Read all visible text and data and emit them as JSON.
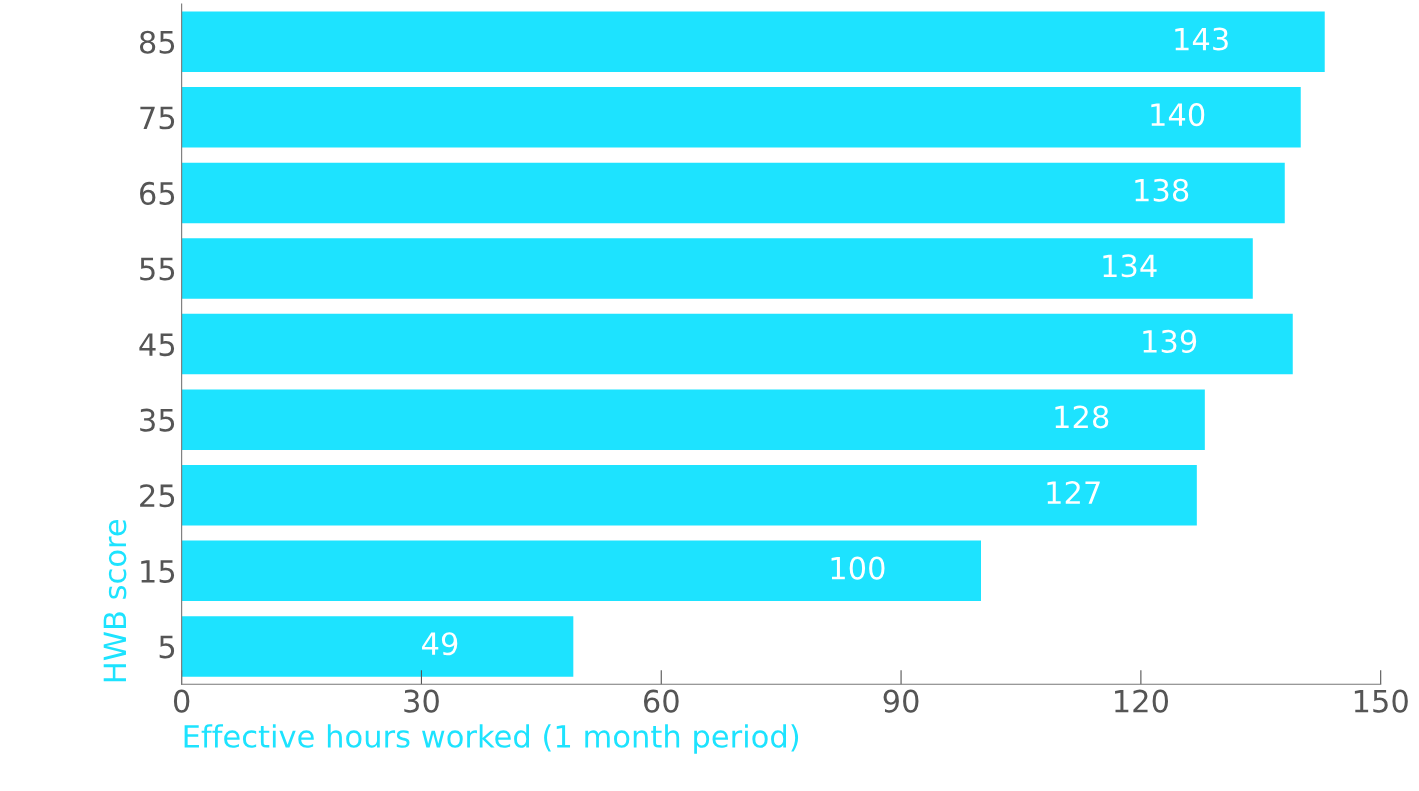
{
  "chart_data": {
    "type": "bar",
    "orientation": "horizontal",
    "xlabel": "Effective hours worked (1 month period)",
    "ylabel": "HWB score",
    "categories": [
      "85",
      "75",
      "65",
      "55",
      "45",
      "35",
      "25",
      "15",
      "5"
    ],
    "values": [
      143,
      140,
      138,
      134,
      139,
      128,
      127,
      100,
      49
    ],
    "color": "#1de3ff",
    "data_labels": true,
    "grid": false,
    "legend": false,
    "xlim": [
      0,
      150
    ],
    "xticks": [
      0,
      30,
      60,
      90,
      120,
      150
    ]
  }
}
